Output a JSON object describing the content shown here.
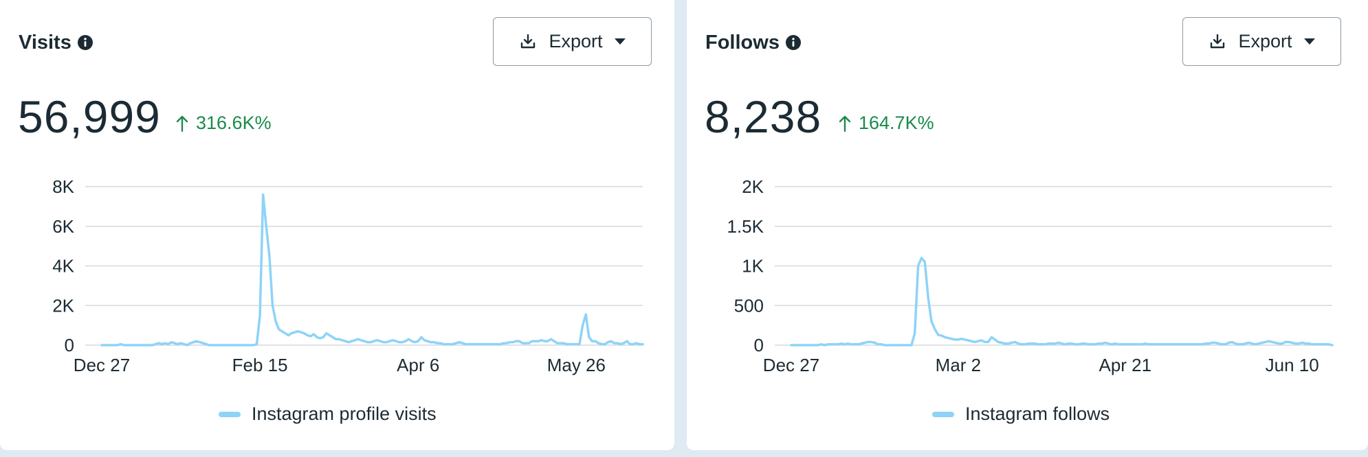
{
  "colors": {
    "line": "#8ed3f7",
    "positive": "#1a8a4a",
    "grid": "#d4d9dd",
    "text": "#1c2b33"
  },
  "icons": {
    "info": "info-icon",
    "export": "download-icon",
    "dropdown": "caret-down-icon",
    "change": "arrow-up-icon"
  },
  "cards": [
    {
      "title": "Visits",
      "export_label": "Export",
      "total": "56,999",
      "change": "316.6K%"
    },
    {
      "title": "Follows",
      "export_label": "Export",
      "total": "8,238",
      "change": "164.7K%"
    }
  ],
  "chart_data": [
    {
      "type": "line",
      "title": "Visits",
      "x_tick_labels": [
        "Dec 27",
        "Feb 15",
        "Apr 6",
        "May 26"
      ],
      "x_tick_index": [
        0,
        50,
        100,
        150
      ],
      "y_tick_labels": [
        "0",
        "2K",
        "4K",
        "6K",
        "8K"
      ],
      "y_ticks": [
        0,
        2000,
        4000,
        6000,
        8000
      ],
      "ylim": [
        0,
        8000
      ],
      "grid": true,
      "legend_position": "bottom-center",
      "series": [
        {
          "name": "Instagram profile visits",
          "values": [
            0,
            0,
            0,
            0,
            0,
            0,
            50,
            0,
            0,
            0,
            0,
            0,
            0,
            0,
            0,
            0,
            0,
            50,
            100,
            50,
            100,
            50,
            150,
            100,
            50,
            100,
            50,
            0,
            100,
            150,
            200,
            150,
            100,
            50,
            0,
            0,
            0,
            0,
            0,
            0,
            0,
            0,
            0,
            0,
            0,
            0,
            0,
            0,
            0,
            50,
            1500,
            7600,
            6000,
            4500,
            2000,
            1200,
            800,
            700,
            600,
            500,
            600,
            650,
            700,
            650,
            600,
            500,
            450,
            550,
            400,
            350,
            400,
            600,
            500,
            400,
            300,
            300,
            250,
            200,
            150,
            200,
            250,
            300,
            250,
            200,
            150,
            150,
            200,
            250,
            200,
            150,
            150,
            200,
            250,
            200,
            150,
            150,
            200,
            300,
            200,
            150,
            200,
            400,
            250,
            200,
            150,
            150,
            100,
            100,
            50,
            50,
            50,
            50,
            100,
            150,
            100,
            50,
            50,
            50,
            50,
            50,
            50,
            50,
            50,
            50,
            50,
            50,
            50,
            100,
            100,
            150,
            150,
            200,
            200,
            100,
            100,
            100,
            200,
            200,
            200,
            250,
            200,
            200,
            300,
            200,
            100,
            100,
            100,
            50,
            50,
            50,
            50,
            50,
            1000,
            1550,
            400,
            200,
            200,
            100,
            50,
            50,
            150,
            200,
            100,
            100,
            50,
            100,
            200,
            50,
            50,
            100,
            50,
            50
          ]
        }
      ]
    },
    {
      "type": "line",
      "title": "Follows",
      "x_tick_labels": [
        "Dec 27",
        "Mar 2",
        "Apr 21",
        "Jun 10"
      ],
      "x_tick_index": [
        0,
        50,
        100,
        150
      ],
      "y_tick_labels": [
        "0",
        "500",
        "1K",
        "1.5K",
        "2K"
      ],
      "y_ticks": [
        0,
        500,
        1000,
        1500,
        2000
      ],
      "ylim": [
        0,
        2000
      ],
      "grid": true,
      "legend_position": "bottom-center",
      "series": [
        {
          "name": "Instagram follows",
          "values": [
            0,
            0,
            0,
            0,
            0,
            0,
            0,
            0,
            0,
            10,
            0,
            10,
            10,
            10,
            10,
            20,
            10,
            20,
            10,
            10,
            10,
            20,
            30,
            40,
            40,
            30,
            10,
            10,
            0,
            0,
            0,
            0,
            0,
            0,
            0,
            0,
            0,
            150,
            1000,
            1100,
            1050,
            600,
            300,
            200,
            130,
            120,
            100,
            90,
            80,
            70,
            70,
            80,
            70,
            60,
            50,
            40,
            50,
            60,
            40,
            40,
            100,
            70,
            40,
            30,
            20,
            20,
            30,
            40,
            20,
            10,
            10,
            20,
            20,
            20,
            10,
            10,
            10,
            20,
            20,
            20,
            30,
            20,
            10,
            20,
            20,
            10,
            10,
            20,
            20,
            10,
            10,
            10,
            20,
            20,
            30,
            20,
            10,
            20,
            10,
            10,
            10,
            10,
            10,
            10,
            10,
            10,
            20,
            10,
            10,
            10,
            10,
            10,
            10,
            10,
            10,
            10,
            10,
            10,
            10,
            10,
            10,
            10,
            10,
            10,
            20,
            20,
            30,
            30,
            20,
            10,
            10,
            30,
            40,
            20,
            10,
            10,
            20,
            30,
            20,
            10,
            20,
            30,
            40,
            50,
            40,
            30,
            20,
            20,
            40,
            40,
            30,
            20,
            20,
            30,
            20,
            20,
            10,
            10,
            10,
            10,
            10,
            10,
            0
          ]
        }
      ]
    }
  ]
}
